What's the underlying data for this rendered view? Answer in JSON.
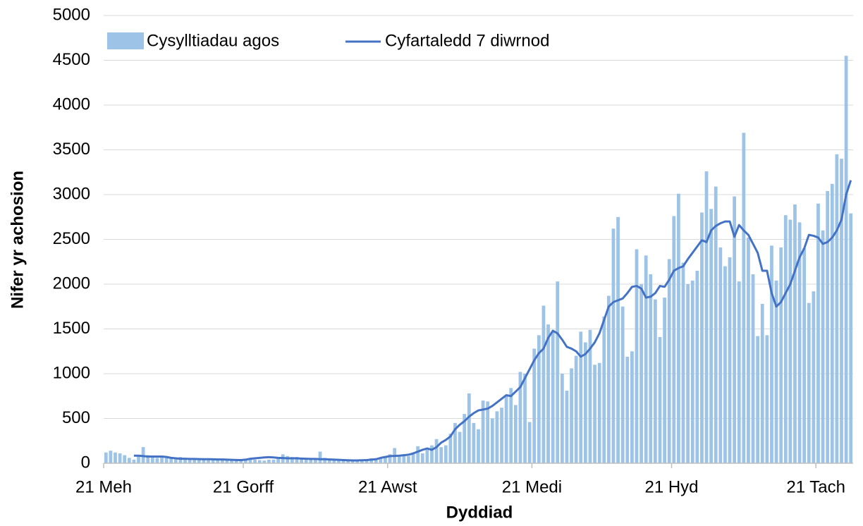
{
  "chart_data": {
    "type": "bar",
    "x_label": "Dyddiad",
    "y_label": "Nifer yr achosion",
    "ylim": [
      0,
      5000
    ],
    "yticks": [
      0,
      500,
      1000,
      1500,
      2000,
      2500,
      3000,
      3500,
      4000,
      4500,
      5000
    ],
    "grid": true,
    "legend": "top",
    "categories": [
      "21 Meh",
      null,
      null,
      null,
      null,
      null,
      null,
      null,
      null,
      null,
      null,
      null,
      null,
      null,
      null,
      null,
      null,
      null,
      null,
      null,
      null,
      null,
      null,
      null,
      null,
      null,
      null,
      null,
      null,
      null,
      "21 Gorff",
      null,
      null,
      null,
      null,
      null,
      null,
      null,
      null,
      null,
      null,
      null,
      null,
      null,
      null,
      null,
      null,
      null,
      null,
      null,
      null,
      null,
      null,
      null,
      null,
      null,
      null,
      null,
      null,
      null,
      null,
      "21 Awst",
      null,
      null,
      null,
      null,
      null,
      null,
      null,
      null,
      null,
      null,
      null,
      null,
      null,
      null,
      null,
      null,
      null,
      null,
      null,
      null,
      null,
      null,
      null,
      null,
      null,
      null,
      null,
      null,
      null,
      null,
      "21 Medi",
      null,
      null,
      null,
      null,
      null,
      null,
      null,
      null,
      null,
      null,
      null,
      null,
      null,
      null,
      null,
      null,
      null,
      null,
      null,
      null,
      null,
      null,
      null,
      null,
      null,
      null,
      null,
      null,
      null,
      "21 Hyd",
      null,
      null,
      null,
      null,
      null,
      null,
      null,
      null,
      null,
      null,
      null,
      null,
      null,
      null,
      null,
      null,
      null,
      null,
      null,
      null,
      null,
      null,
      null,
      null,
      null,
      null,
      null,
      null,
      null,
      null,
      "21 Tach",
      null,
      null,
      null,
      null,
      null,
      null,
      null
    ],
    "series": [
      {
        "name": "Cysylltiadau agos",
        "type": "bar",
        "color": "#9dc3e6",
        "values": [
          120,
          140,
          120,
          110,
          90,
          60,
          40,
          80,
          180,
          90,
          70,
          60,
          70,
          80,
          60,
          50,
          70,
          60,
          50,
          40,
          50,
          50,
          40,
          45,
          50,
          40,
          45,
          40,
          35,
          40,
          45,
          50,
          40,
          35,
          30,
          40,
          40,
          60,
          100,
          80,
          70,
          70,
          60,
          55,
          60,
          50,
          130,
          60,
          50,
          45,
          45,
          40,
          35,
          30,
          35,
          40,
          40,
          55,
          40,
          60,
          80,
          100,
          170,
          90,
          100,
          80,
          120,
          190,
          110,
          150,
          200,
          270,
          180,
          200,
          330,
          450,
          350,
          550,
          780,
          450,
          380,
          700,
          690,
          500,
          580,
          620,
          760,
          840,
          650,
          1020,
          1000,
          460,
          1280,
          1430,
          1760,
          1550,
          1460,
          2030,
          1000,
          810,
          1060,
          1200,
          1470,
          1350,
          1490,
          1100,
          1120,
          1640,
          1870,
          2620,
          2750,
          1750,
          1190,
          1250,
          2390,
          2000,
          2320,
          2110,
          1830,
          1410,
          1850,
          2280,
          2760,
          3010,
          2240,
          2000,
          2040,
          2150,
          2800,
          3260,
          2840,
          3090,
          2410,
          2200,
          2300,
          2980,
          2030,
          3690,
          2520,
          2110,
          1420,
          1780,
          1430,
          2430,
          2040,
          2410,
          2770,
          2720,
          2890,
          2690,
          2400,
          1790,
          1920,
          2900,
          2600,
          3040,
          3120,
          3450,
          3400,
          4550,
          2790
        ]
      },
      {
        "name": "Cyfartaledd 7 diwrnod",
        "type": "line",
        "color": "#4472c4",
        "values": [
          null,
          null,
          null,
          null,
          null,
          null,
          85,
          85,
          80,
          75,
          75,
          75,
          75,
          70,
          60,
          55,
          50,
          50,
          48,
          48,
          46,
          45,
          45,
          44,
          42,
          42,
          40,
          38,
          36,
          35,
          40,
          50,
          55,
          60,
          65,
          68,
          65,
          60,
          58,
          55,
          55,
          55,
          52,
          50,
          48,
          48,
          45,
          45,
          42,
          40,
          38,
          35,
          33,
          32,
          32,
          33,
          35,
          40,
          45,
          60,
          70,
          80,
          82,
          85,
          90,
          95,
          110,
          130,
          150,
          165,
          150,
          180,
          230,
          260,
          300,
          380,
          430,
          470,
          520,
          560,
          590,
          600,
          610,
          640,
          680,
          720,
          760,
          750,
          800,
          850,
          950,
          1050,
          1150,
          1230,
          1280,
          1400,
          1480,
          1450,
          1380,
          1300,
          1280,
          1250,
          1190,
          1220,
          1280,
          1350,
          1450,
          1600,
          1750,
          1800,
          1820,
          1840,
          1900,
          1970,
          1980,
          1950,
          1850,
          1860,
          1900,
          1980,
          1970,
          2050,
          2150,
          2180,
          2200,
          2280,
          2350,
          2420,
          2490,
          2470,
          2600,
          2650,
          2680,
          2700,
          2700,
          2530,
          2660,
          2600,
          2550,
          2450,
          2350,
          2150,
          2150,
          1900,
          1750,
          1800,
          1900,
          2000,
          2150,
          2300,
          2400,
          2550,
          2540,
          2520,
          2450,
          2470,
          2520,
          2600,
          2720,
          3000,
          3160
        ]
      }
    ]
  }
}
